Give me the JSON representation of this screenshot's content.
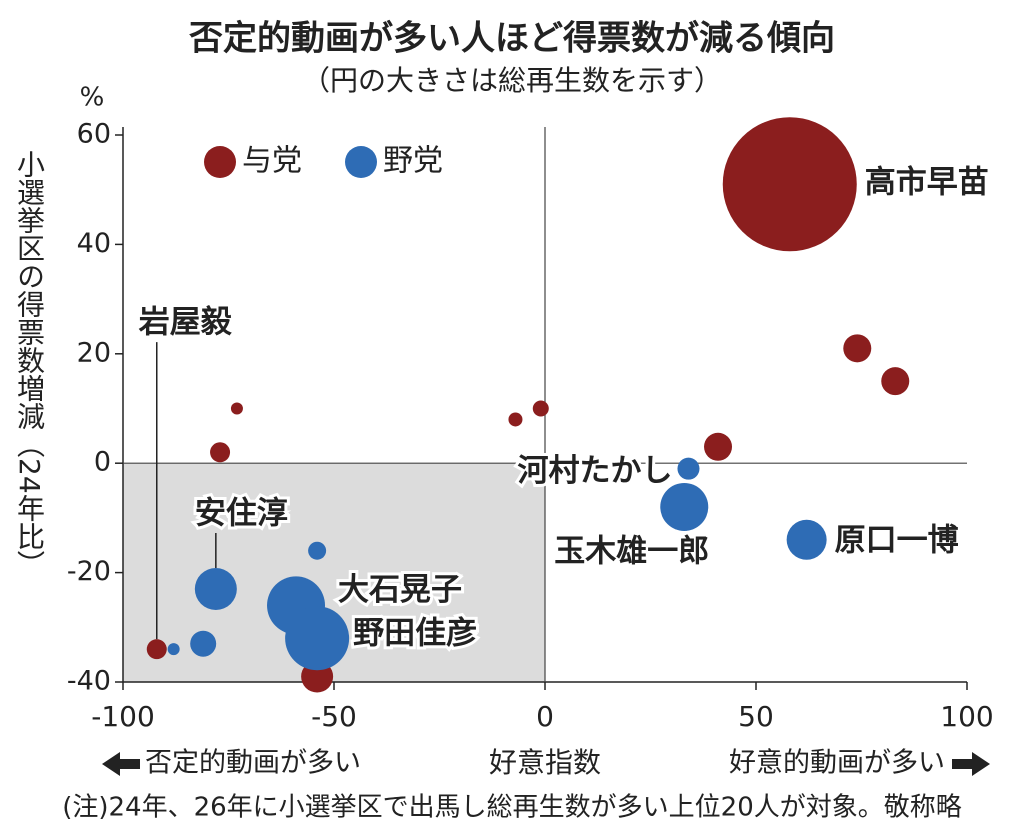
{
  "chart_data": {
    "type": "scatter",
    "title": "否定的動画が多い人ほど得票数が減る傾向",
    "subtitle": "（円の大きさは総再生数を示す）",
    "y_unit": "%",
    "y_label": "小選挙区の得票数増減（24年比）",
    "x_label": "好意指数",
    "x_label_left": "否定的動画が多い",
    "x_label_right": "好意的動画が多い",
    "note": "(注)24年、26年に小選挙区で出馬し総再生数が多い上位20人が対象。敬称略",
    "xlim": [
      -100,
      100
    ],
    "xticks": [
      -100,
      -50,
      0,
      50,
      100
    ],
    "ylim": [
      -40,
      60
    ],
    "yticks": [
      -40,
      -20,
      0,
      20,
      40,
      60
    ],
    "series": [
      {
        "name": "与党",
        "color": "#8b1e1e",
        "x": [
          58,
          74,
          83,
          41,
          -1,
          -7,
          -73,
          -77,
          -92,
          -54
        ],
        "values": [
          51,
          21,
          15,
          3,
          10,
          8,
          10,
          2,
          -34,
          -39
        ],
        "sizes": [
          67,
          14,
          14,
          14,
          8,
          7,
          6,
          10,
          10,
          16
        ],
        "labels": [
          "高市早苗",
          null,
          null,
          null,
          null,
          null,
          null,
          null,
          "岩屋毅",
          null
        ]
      },
      {
        "name": "野党",
        "color": "#2e6cb5",
        "x": [
          34,
          33,
          62,
          -78,
          -54,
          -59,
          -54,
          -81,
          -88
        ],
        "values": [
          -1,
          -8,
          -14,
          -23,
          -16,
          -26,
          -32,
          -33,
          -34
        ],
        "sizes": [
          11,
          24,
          20,
          21,
          9,
          29,
          32,
          13,
          6
        ],
        "labels": [
          "河村たかし",
          "玉木雄一郎",
          "原口一博",
          "安住淳",
          null,
          "大石晃子",
          "野田佳彦",
          null,
          null
        ]
      }
    ]
  }
}
